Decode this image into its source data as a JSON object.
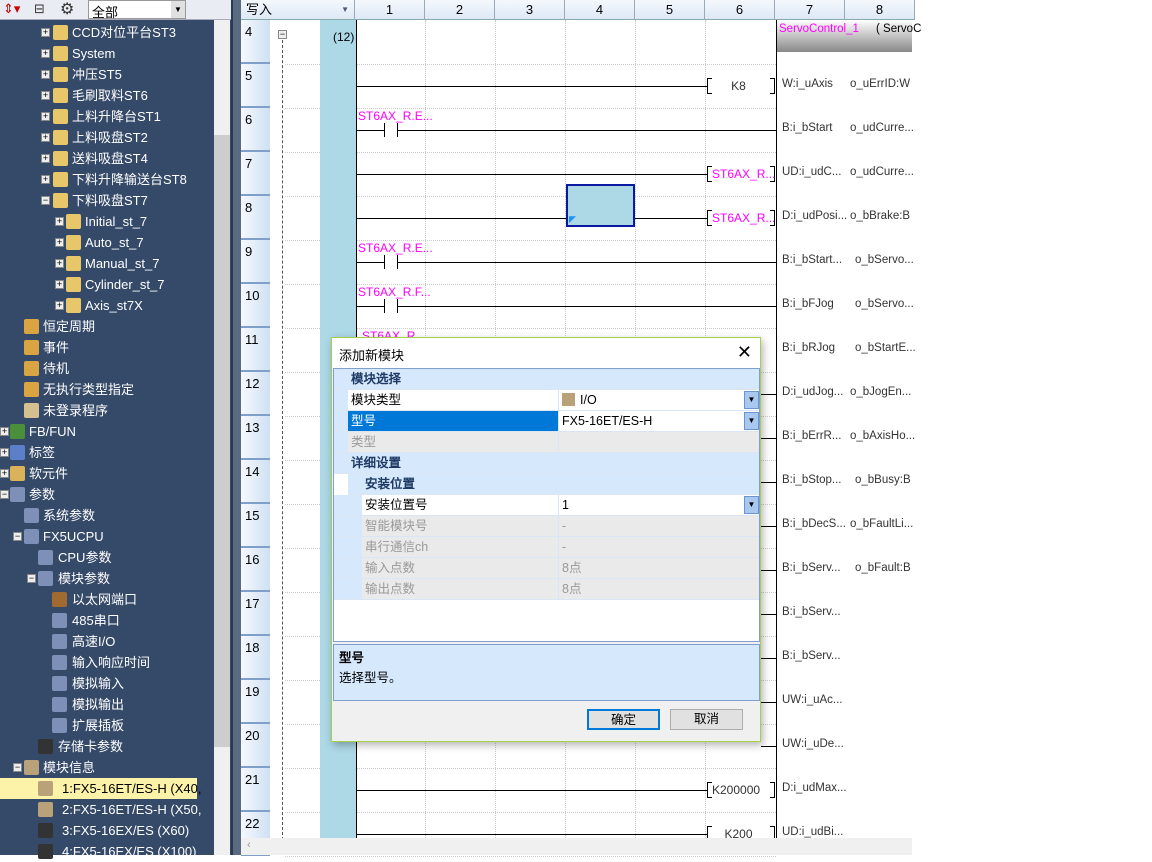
{
  "toolbar": {
    "filter": "全部",
    "icons": [
      "sort-icon",
      "tree-icon",
      "gear-icon"
    ]
  },
  "tree": [
    {
      "label": "CCD对位平台ST3",
      "depth": 3,
      "exp": "+",
      "icon": "folder"
    },
    {
      "label": "System",
      "depth": 3,
      "exp": "+",
      "icon": "folder"
    },
    {
      "label": "冲压ST5",
      "depth": 3,
      "exp": "+",
      "icon": "folder"
    },
    {
      "label": "毛刷取料ST6",
      "depth": 3,
      "exp": "+",
      "icon": "folder"
    },
    {
      "label": "上料升降台ST1",
      "depth": 3,
      "exp": "+",
      "icon": "folder"
    },
    {
      "label": "上料吸盘ST2",
      "depth": 3,
      "exp": "+",
      "icon": "folder"
    },
    {
      "label": "送料吸盘ST4",
      "depth": 3,
      "exp": "+",
      "icon": "folder"
    },
    {
      "label": "下料升降输送台ST8",
      "depth": 3,
      "exp": "+",
      "icon": "folder"
    },
    {
      "label": "下料吸盘ST7",
      "depth": 3,
      "exp": "-",
      "icon": "folder"
    },
    {
      "label": "Initial_st_7",
      "depth": 4,
      "exp": "+",
      "icon": "program"
    },
    {
      "label": "Auto_st_7",
      "depth": 4,
      "exp": "+",
      "icon": "program"
    },
    {
      "label": "Manual_st_7",
      "depth": 4,
      "exp": "+",
      "icon": "program"
    },
    {
      "label": "Cylinder_st_7",
      "depth": 4,
      "exp": "+",
      "icon": "program"
    },
    {
      "label": "Axis_st7X",
      "depth": 4,
      "exp": "+",
      "icon": "program"
    },
    {
      "label": "恒定周期",
      "depth": 2,
      "icon": "task"
    },
    {
      "label": "事件",
      "depth": 2,
      "icon": "task"
    },
    {
      "label": "待机",
      "depth": 2,
      "icon": "task"
    },
    {
      "label": "无执行类型指定",
      "depth": 2,
      "icon": "task"
    },
    {
      "label": "未登录程序",
      "depth": 2,
      "icon": "unregistered"
    },
    {
      "label": "FB/FUN",
      "depth": 1,
      "exp": "+",
      "icon": "fb"
    },
    {
      "label": "标签",
      "depth": 1,
      "exp": "+",
      "icon": "label"
    },
    {
      "label": "软元件",
      "depth": 1,
      "exp": "+",
      "icon": "device"
    },
    {
      "label": "参数",
      "depth": 1,
      "exp": "-",
      "icon": "param"
    },
    {
      "label": "系统参数",
      "depth": 2,
      "icon": "param"
    },
    {
      "label": "FX5UCPU",
      "depth": 2,
      "exp": "-",
      "icon": "param"
    },
    {
      "label": "CPU参数",
      "depth": 3,
      "icon": "param"
    },
    {
      "label": "模块参数",
      "depth": 3,
      "exp": "-",
      "icon": "param"
    },
    {
      "label": "以太网端口",
      "depth": 4,
      "icon": "ethernet"
    },
    {
      "label": "485串口",
      "depth": 4,
      "icon": "param"
    },
    {
      "label": "高速I/O",
      "depth": 4,
      "icon": "param"
    },
    {
      "label": "输入响应时间",
      "depth": 4,
      "icon": "param"
    },
    {
      "label": "模拟输入",
      "depth": 4,
      "icon": "param"
    },
    {
      "label": "模拟输出",
      "depth": 4,
      "icon": "param"
    },
    {
      "label": "扩展插板",
      "depth": 4,
      "icon": "param"
    },
    {
      "label": "存储卡参数",
      "depth": 3,
      "icon": "sdcard"
    },
    {
      "label": "模块信息",
      "depth": 2,
      "exp": "-",
      "icon": "module"
    },
    {
      "label": "1:FX5-16ET/ES-H  (X40,",
      "depth": 3,
      "icon": "module",
      "selected": true
    },
    {
      "label": "2:FX5-16ET/ES-H  (X50,",
      "depth": 3,
      "icon": "module"
    },
    {
      "label": "3:FX5-16EX/ES  (X60)",
      "depth": 3,
      "icon": "unit"
    },
    {
      "label": "4:FX5-16EX/ES  (X100)",
      "depth": 3,
      "icon": "unit"
    }
  ],
  "ladder": {
    "mode": "写入",
    "columns": [
      "1",
      "2",
      "3",
      "4",
      "5",
      "6",
      "7",
      "8"
    ],
    "step": "(12)",
    "fb_name": "ServoControl_1",
    "fb_type": "( ServoC",
    "rows": [
      {
        "n": "4"
      },
      {
        "n": "5",
        "wire": true,
        "operand": "K8",
        "in": "W:i_uAxis",
        "out": "o_uErrID:W"
      },
      {
        "n": "6",
        "contact": "ST6AX_R.E...",
        "in": "B:i_bStart",
        "out": "o_udCurre..."
      },
      {
        "n": "7",
        "wire": true,
        "operand": "ST6AX_R...",
        "opcolor": "magenta",
        "in": "UD:i_udC...",
        "out": "o_udCurre..."
      },
      {
        "n": "8",
        "wire": true,
        "operand": "ST6AX_R...",
        "opcolor": "magenta",
        "in": "D:i_udPosi...",
        "out": "o_bBrake:B"
      },
      {
        "n": "9",
        "contact": "ST6AX_R.E...",
        "in": "B:i_bStart...",
        "out": "o_bServo..."
      },
      {
        "n": "10",
        "contact": "ST6AX_R.F...",
        "in": "B:i_bFJog",
        "out": "o_bServo..."
      },
      {
        "n": "11",
        "contact": "ST6AX_R...",
        "in": "B:i_bRJog",
        "out": "o_bStartE..."
      },
      {
        "n": "12",
        "in": "D:i_udJog...",
        "out": "o_bJogEn..."
      },
      {
        "n": "13",
        "in": "B:i_bErrR...",
        "out": "o_bAxisHo..."
      },
      {
        "n": "14",
        "in": "B:i_bStop...",
        "out": "o_bBusy:B"
      },
      {
        "n": "15",
        "in": "B:i_bDecS...",
        "out": "o_bFaultLi..."
      },
      {
        "n": "16",
        "in": "B:i_bServ...",
        "out": "o_bFault:B"
      },
      {
        "n": "17",
        "in": "B:i_bServ..."
      },
      {
        "n": "18",
        "in": "B:i_bServ..."
      },
      {
        "n": "19",
        "in": "UW:i_uAc..."
      },
      {
        "n": "20",
        "in": "UW:i_uDe..."
      },
      {
        "n": "21",
        "wire": true,
        "operand": "K200000",
        "in": "D:i_udMax..."
      },
      {
        "n": "22",
        "wire": true,
        "operand": "K200",
        "in": "UD:i_udBi..."
      }
    ]
  },
  "dialog": {
    "title": "添加新模块",
    "sections": [
      {
        "label": "模块选择",
        "type": "header",
        "depth": 0
      },
      {
        "label": "模块类型",
        "value": "I/O",
        "type": "dropdown",
        "depth": 0
      },
      {
        "label": "型号",
        "value": "FX5-16ET/ES-H",
        "type": "dropdown",
        "selected": true,
        "depth": 0
      },
      {
        "label": "类型",
        "value": "",
        "type": "disabled",
        "depth": 0
      },
      {
        "label": "详细设置",
        "type": "header",
        "depth": 0
      },
      {
        "label": "安装位置",
        "type": "header",
        "depth": 1
      },
      {
        "label": "安装位置号",
        "value": "1",
        "type": "dropdown",
        "depth": 1
      },
      {
        "label": "智能模块号",
        "value": "-",
        "type": "disabled",
        "depth": 1
      },
      {
        "label": "串行通信ch",
        "value": "-",
        "type": "disabled",
        "depth": 1
      },
      {
        "label": "输入点数",
        "value": "8点",
        "type": "disabled",
        "depth": 1
      },
      {
        "label": "输出点数",
        "value": "8点",
        "type": "disabled",
        "depth": 1
      }
    ],
    "desc_title": "型号",
    "desc_text": "选择型号。",
    "ok": "确定",
    "cancel": "取消"
  },
  "colors": {
    "label_magenta": "#ff00ff",
    "tree_bg": "#354a69",
    "selection": "#0078d7",
    "accent_border": "#a6d04a"
  }
}
